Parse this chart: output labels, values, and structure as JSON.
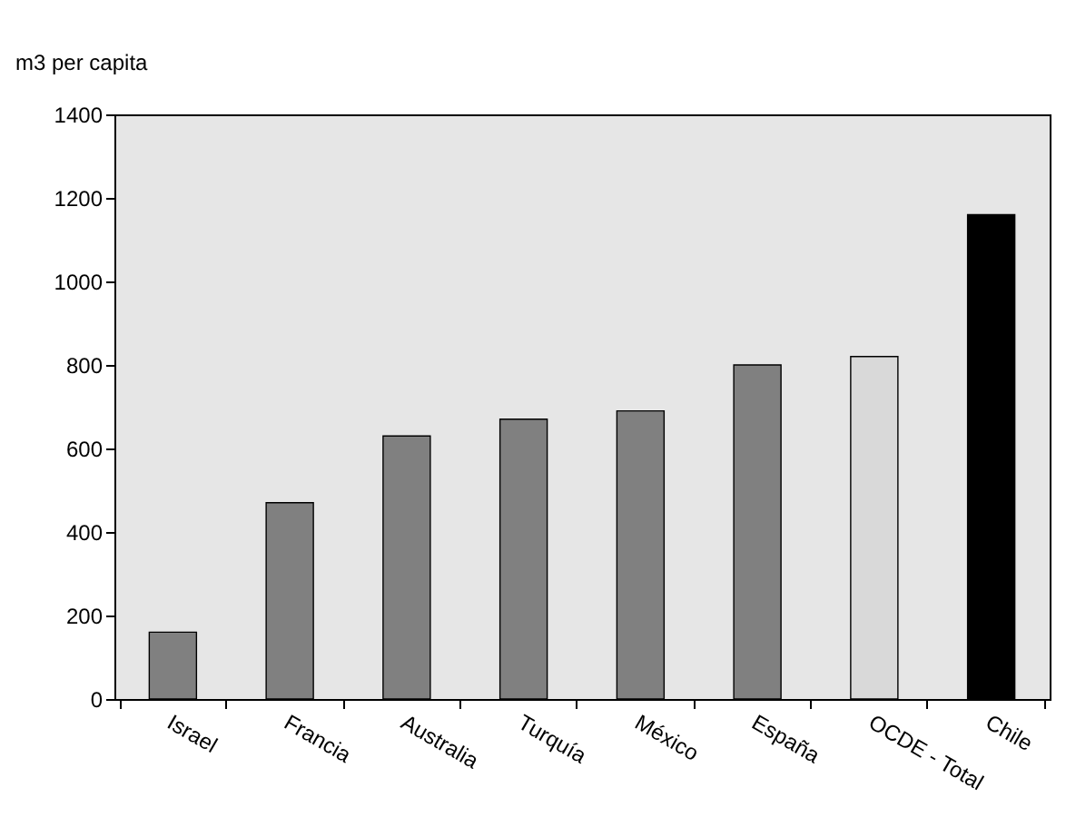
{
  "chart_data": {
    "type": "bar",
    "ylabel": "m3 per capita",
    "categories": [
      "Israel",
      "Francia",
      "Australia",
      "Turquía",
      "México",
      "España",
      "OCDE - Total",
      "Chile"
    ],
    "values": [
      160,
      470,
      630,
      670,
      690,
      800,
      820,
      1160
    ],
    "colors": [
      "#808080",
      "#808080",
      "#808080",
      "#808080",
      "#808080",
      "#808080",
      "#d9d9d9",
      "#000000"
    ],
    "ylim": [
      0,
      1400
    ],
    "yticks": [
      0,
      200,
      400,
      600,
      800,
      1000,
      1200,
      1400
    ],
    "grid": false
  }
}
